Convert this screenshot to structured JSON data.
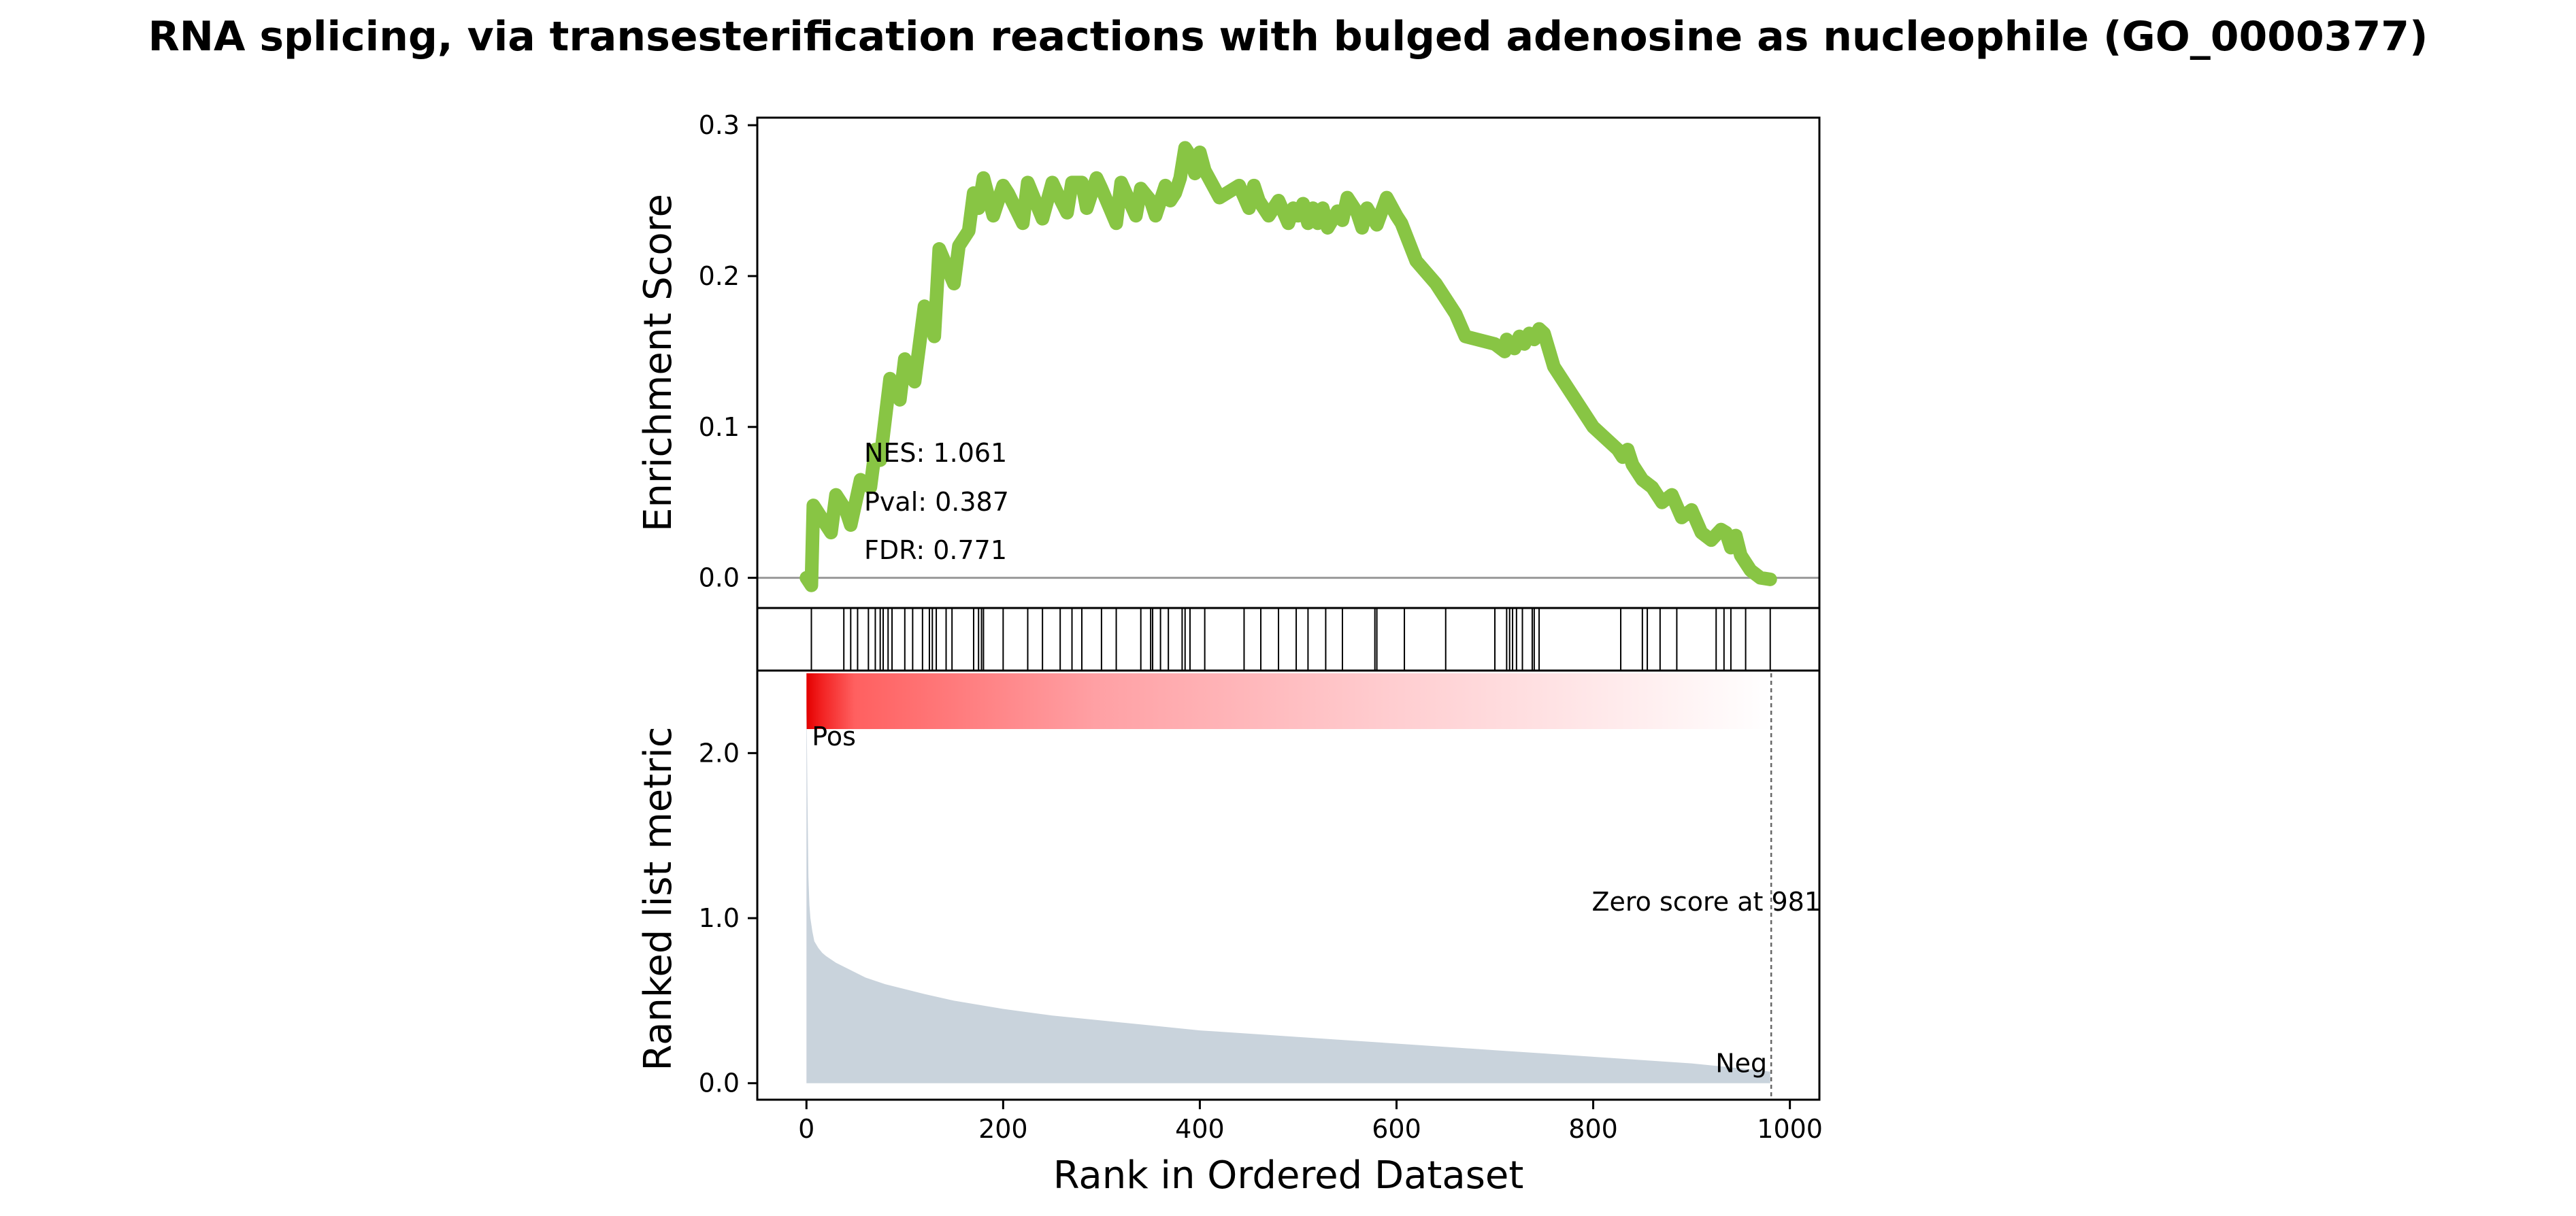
{
  "chart_data": {
    "type": "line",
    "title": "RNA splicing, via transesterification reactions with bulged adenosine as nucleophile (GO_0000377)",
    "xlabel": "Rank in Ordered Dataset",
    "x_ticks": [
      0,
      200,
      400,
      600,
      800,
      1000
    ],
    "xlim": [
      -50,
      1030
    ],
    "enrichment": {
      "ylabel": "Enrichment Score",
      "y_ticks": [
        0.0,
        0.1,
        0.2,
        0.3
      ],
      "y_tick_labels": [
        "0.0",
        "0.1",
        "0.2",
        "0.3"
      ],
      "ylim": [
        -0.02,
        0.305
      ],
      "line_color": "#88c544",
      "x": [
        0,
        5,
        7,
        25,
        30,
        40,
        45,
        55,
        65,
        70,
        75,
        80,
        85,
        95,
        100,
        105,
        110,
        120,
        125,
        130,
        135,
        150,
        155,
        165,
        170,
        175,
        180,
        190,
        200,
        205,
        220,
        225,
        240,
        250,
        255,
        265,
        270,
        280,
        285,
        295,
        300,
        315,
        320,
        335,
        340,
        350,
        355,
        365,
        370,
        375,
        380,
        385,
        390,
        395,
        400,
        405,
        420,
        440,
        450,
        455,
        460,
        470,
        480,
        490,
        495,
        500,
        505,
        510,
        515,
        520,
        525,
        530,
        540,
        545,
        550,
        560,
        565,
        570,
        580,
        590,
        600,
        605,
        620,
        640,
        660,
        670,
        700,
        710,
        712,
        720,
        725,
        730,
        735,
        740,
        745,
        750,
        760,
        780,
        800,
        825,
        830,
        835,
        840,
        850,
        860,
        870,
        880,
        890,
        900,
        910,
        920,
        930,
        935,
        940,
        945,
        950,
        960,
        970,
        980
      ],
      "y": [
        0.0,
        -0.005,
        0.048,
        0.03,
        0.055,
        0.045,
        0.035,
        0.065,
        0.06,
        0.085,
        0.078,
        0.105,
        0.132,
        0.118,
        0.145,
        0.14,
        0.13,
        0.18,
        0.175,
        0.16,
        0.218,
        0.195,
        0.22,
        0.23,
        0.255,
        0.245,
        0.265,
        0.24,
        0.26,
        0.255,
        0.235,
        0.262,
        0.238,
        0.262,
        0.255,
        0.242,
        0.262,
        0.262,
        0.245,
        0.265,
        0.258,
        0.235,
        0.262,
        0.24,
        0.258,
        0.25,
        0.24,
        0.26,
        0.25,
        0.255,
        0.265,
        0.285,
        0.28,
        0.268,
        0.282,
        0.27,
        0.252,
        0.26,
        0.245,
        0.26,
        0.25,
        0.24,
        0.25,
        0.235,
        0.245,
        0.24,
        0.248,
        0.235,
        0.245,
        0.235,
        0.245,
        0.232,
        0.243,
        0.237,
        0.252,
        0.242,
        0.232,
        0.245,
        0.234,
        0.252,
        0.24,
        0.235,
        0.21,
        0.195,
        0.175,
        0.16,
        0.155,
        0.15,
        0.158,
        0.152,
        0.16,
        0.155,
        0.162,
        0.158,
        0.165,
        0.162,
        0.14,
        0.12,
        0.1,
        0.085,
        0.08,
        0.085,
        0.075,
        0.065,
        0.06,
        0.05,
        0.055,
        0.04,
        0.045,
        0.03,
        0.025,
        0.032,
        0.03,
        0.02,
        0.028,
        0.015,
        0.005,
        0.0,
        -0.001
      ],
      "annotations": {
        "nes": "NES: 1.061",
        "pval": "Pval: 0.387",
        "fdr": "FDR: 0.771"
      }
    },
    "hits": [
      5,
      38,
      45,
      52,
      63,
      70,
      75,
      78,
      83,
      87,
      100,
      108,
      118,
      125,
      128,
      132,
      142,
      148,
      170,
      175,
      178,
      180,
      200,
      225,
      240,
      258,
      270,
      280,
      300,
      315,
      340,
      350,
      352,
      360,
      368,
      382,
      385,
      390,
      405,
      445,
      462,
      480,
      498,
      510,
      528,
      545,
      578,
      580,
      608,
      650,
      700,
      712,
      715,
      718,
      722,
      728,
      738,
      740,
      745,
      828,
      850,
      855,
      868,
      885,
      925,
      933,
      940,
      955,
      980
    ],
    "ranked_metric": {
      "ylabel": "Ranked list metric",
      "y_ticks": [
        0.0,
        1.0,
        2.0
      ],
      "y_tick_labels": [
        "0.0",
        "1.0",
        "2.0"
      ],
      "ylim": [
        -0.1,
        2.5
      ],
      "fill_color": "#c9d3dc",
      "x": [
        0,
        1,
        2,
        3,
        4,
        6,
        8,
        12,
        16,
        20,
        25,
        30,
        40,
        50,
        60,
        80,
        100,
        120,
        150,
        200,
        250,
        300,
        350,
        400,
        450,
        500,
        550,
        600,
        650,
        700,
        750,
        800,
        850,
        900,
        950,
        980
      ],
      "y": [
        2.35,
        1.75,
        1.25,
        1.08,
        1.0,
        0.92,
        0.86,
        0.82,
        0.79,
        0.77,
        0.75,
        0.73,
        0.7,
        0.67,
        0.64,
        0.6,
        0.57,
        0.54,
        0.5,
        0.45,
        0.41,
        0.38,
        0.35,
        0.32,
        0.3,
        0.28,
        0.26,
        0.24,
        0.22,
        0.2,
        0.18,
        0.16,
        0.14,
        0.12,
        0.09,
        0.07
      ],
      "pos_label": "Pos",
      "neg_label": "Neg",
      "pos_color": "#e00000",
      "neg_color": "#0000dd",
      "zero_score_label": "Zero score at 981",
      "zero_score_x": 981
    },
    "heatmap_color": "#ff0000"
  }
}
